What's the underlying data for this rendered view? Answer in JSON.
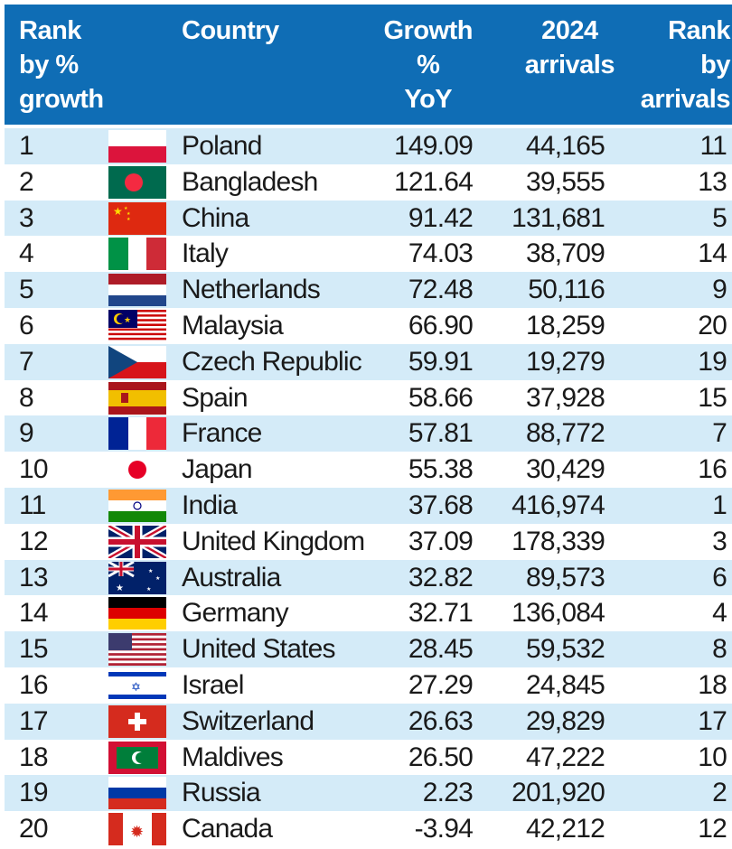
{
  "header": {
    "rank_growth": [
      "Rank",
      "by %",
      "growth"
    ],
    "country": "Country",
    "growth": [
      "Growth",
      "%",
      "YoY"
    ],
    "arrivals": [
      "2024",
      "arrivals"
    ],
    "rank_arrivals": [
      "Rank",
      "by",
      "arrivals"
    ]
  },
  "colors": {
    "header_bg": "#0f6db5",
    "stripe": "#d4ebf8"
  },
  "chart_data": {
    "type": "table",
    "columns": [
      "Rank by % growth",
      "Country",
      "Growth % YoY",
      "2024 arrivals",
      "Rank by arrivals"
    ],
    "rows": [
      {
        "rank": "1",
        "flag": "poland-flag-icon",
        "country": "Poland",
        "growth": "149.09",
        "arrivals": "44,165",
        "arrival_rank": "11"
      },
      {
        "rank": "2",
        "flag": "bangladesh-flag-icon",
        "country": "Bangladesh",
        "growth": "121.64",
        "arrivals": "39,555",
        "arrival_rank": "13"
      },
      {
        "rank": "3",
        "flag": "china-flag-icon",
        "country": "China",
        "growth": "91.42",
        "arrivals": "131,681",
        "arrival_rank": "5"
      },
      {
        "rank": "4",
        "flag": "italy-flag-icon",
        "country": "Italy",
        "growth": "74.03",
        "arrivals": "38,709",
        "arrival_rank": "14"
      },
      {
        "rank": "5",
        "flag": "netherlands-flag-icon",
        "country": "Netherlands",
        "growth": "72.48",
        "arrivals": "50,116",
        "arrival_rank": "9"
      },
      {
        "rank": "6",
        "flag": "malaysia-flag-icon",
        "country": "Malaysia",
        "growth": "66.90",
        "arrivals": "18,259",
        "arrival_rank": "20"
      },
      {
        "rank": "7",
        "flag": "czech-flag-icon",
        "country": "Czech Republic",
        "growth": "59.91",
        "arrivals": "19,279",
        "arrival_rank": "19"
      },
      {
        "rank": "8",
        "flag": "spain-flag-icon",
        "country": "Spain",
        "growth": "58.66",
        "arrivals": "37,928",
        "arrival_rank": "15"
      },
      {
        "rank": "9",
        "flag": "france-flag-icon",
        "country": "France",
        "growth": "57.81",
        "arrivals": "88,772",
        "arrival_rank": "7"
      },
      {
        "rank": "10",
        "flag": "japan-flag-icon",
        "country": "Japan",
        "growth": "55.38",
        "arrivals": "30,429",
        "arrival_rank": "16"
      },
      {
        "rank": "11",
        "flag": "india-flag-icon",
        "country": "India",
        "growth": "37.68",
        "arrivals": "416,974",
        "arrival_rank": "1"
      },
      {
        "rank": "12",
        "flag": "uk-flag-icon",
        "country": "United Kingdom",
        "growth": "37.09",
        "arrivals": "178,339",
        "arrival_rank": "3"
      },
      {
        "rank": "13",
        "flag": "australia-flag-icon",
        "country": "Australia",
        "growth": "32.82",
        "arrivals": "89,573",
        "arrival_rank": "6"
      },
      {
        "rank": "14",
        "flag": "germany-flag-icon",
        "country": "Germany",
        "growth": "32.71",
        "arrivals": "136,084",
        "arrival_rank": "4"
      },
      {
        "rank": "15",
        "flag": "usa-flag-icon",
        "country": "United States",
        "growth": "28.45",
        "arrivals": "59,532",
        "arrival_rank": "8"
      },
      {
        "rank": "16",
        "flag": "israel-flag-icon",
        "country": "Israel",
        "growth": "27.29",
        "arrivals": "24,845",
        "arrival_rank": "18"
      },
      {
        "rank": "17",
        "flag": "switzerland-flag-icon",
        "country": "Switzerland",
        "growth": "26.63",
        "arrivals": "29,829",
        "arrival_rank": "17"
      },
      {
        "rank": "18",
        "flag": "maldives-flag-icon",
        "country": "Maldives",
        "growth": "26.50",
        "arrivals": "47,222",
        "arrival_rank": "10"
      },
      {
        "rank": "19",
        "flag": "russia-flag-icon",
        "country": "Russia",
        "growth": "2.23",
        "arrivals": "201,920",
        "arrival_rank": "2"
      },
      {
        "rank": "20",
        "flag": "canada-flag-icon",
        "country": "Canada",
        "growth": "-3.94",
        "arrivals": "42,212",
        "arrival_rank": "12"
      }
    ]
  }
}
